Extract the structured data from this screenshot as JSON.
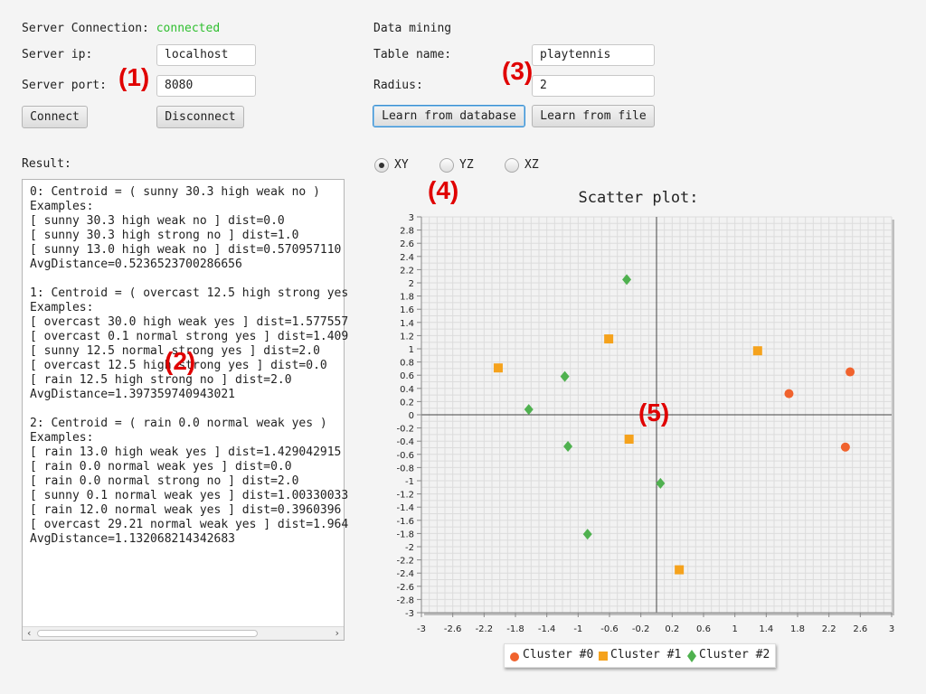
{
  "server": {
    "connection_label": "Server Connection:",
    "connection_status": "connected",
    "ip_label": "Server ip:",
    "ip_value": "localhost",
    "port_label": "Server port:",
    "port_value": "8080",
    "connect_button": "Connect",
    "disconnect_button": "Disconnect"
  },
  "mining": {
    "title": "Data mining",
    "table_label": "Table name:",
    "table_value": "playtennis",
    "radius_label": "Radius:",
    "radius_value": "2",
    "learn_db_button": "Learn from database",
    "learn_file_button": "Learn from file"
  },
  "result": {
    "label": "Result:",
    "text": "0: Centroid = ( sunny 30.3 high weak no )\nExamples:\n[ sunny 30.3 high weak no ] dist=0.0\n[ sunny 30.3 high strong no ] dist=1.0\n[ sunny 13.0 high weak no ] dist=0.570957110\nAvgDistance=0.5236523700286656\n\n1: Centroid = ( overcast 12.5 high strong yes\nExamples:\n[ overcast 30.0 high weak yes ] dist=1.577557\n[ overcast 0.1 normal strong yes ] dist=1.409\n[ sunny 12.5 normal strong yes ] dist=2.0\n[ overcast 12.5 high strong yes ] dist=0.0\n[ rain 12.5 high strong no ] dist=2.0\nAvgDistance=1.397359740943021\n\n2: Centroid = ( rain 0.0 normal weak yes )\nExamples:\n[ rain 13.0 high weak yes ] dist=1.429042915\n[ rain 0.0 normal weak yes ] dist=0.0\n[ rain 0.0 normal strong no ] dist=2.0\n[ sunny 0.1 normal weak yes ] dist=1.00330033\n[ rain 12.0 normal weak yes ] dist=0.3960396\n[ overcast 29.21 normal weak yes ] dist=1.964\nAvgDistance=1.132068214342683"
  },
  "projection": {
    "options": [
      "XY",
      "YZ",
      "XZ"
    ],
    "selected": "XY"
  },
  "annotations": [
    "(1)",
    "(2)",
    "(3)",
    "(4)",
    "(5)"
  ],
  "colors": {
    "cluster0": "#f0622d",
    "cluster1": "#f5a21c",
    "cluster2": "#4fb14f",
    "status_ok": "#2fbf2f",
    "annotation": "#e00000"
  },
  "chart_data": {
    "type": "scatter",
    "title": "Scatter plot:",
    "xlim": [
      -3,
      3
    ],
    "ylim": [
      -3,
      3
    ],
    "grid": true,
    "legend_position": "bottom",
    "x_ticks": [
      "-3",
      "-2.6",
      "-2.2",
      "-1.8",
      "-1.4",
      "-1",
      "-0.6",
      "-0.2",
      "0.2",
      "0.6",
      "1",
      "1.4",
      "1.8",
      "2.2",
      "2.6",
      "3"
    ],
    "y_ticks": [
      "3",
      "2.8",
      "2.6",
      "2.4",
      "2.2",
      "2",
      "1.8",
      "1.6",
      "1.4",
      "1.2",
      "1",
      "0.8",
      "0.6",
      "0.4",
      "0.2",
      "0",
      "-0.2",
      "-0.4",
      "-0.6",
      "-0.8",
      "-1",
      "-1.2",
      "-1.4",
      "-1.6",
      "-1.8",
      "-2",
      "-2.2",
      "-2.4",
      "-2.6",
      "-2.8",
      "-3"
    ],
    "series": [
      {
        "name": "Cluster #0",
        "marker": "circle",
        "color": "#f0622d",
        "points": [
          [
            2.47,
            0.65
          ],
          [
            1.69,
            0.32
          ],
          [
            2.41,
            -0.49
          ]
        ]
      },
      {
        "name": "Cluster #1",
        "marker": "square",
        "color": "#f5a21c",
        "points": [
          [
            -2.02,
            0.71
          ],
          [
            -0.61,
            1.15
          ],
          [
            1.29,
            0.97
          ],
          [
            -0.35,
            -0.37
          ],
          [
            0.29,
            -2.35
          ]
        ]
      },
      {
        "name": "Cluster #2",
        "marker": "diamond",
        "color": "#4fb14f",
        "points": [
          [
            -0.38,
            2.05
          ],
          [
            -1.17,
            0.58
          ],
          [
            -1.63,
            0.08
          ],
          [
            -1.13,
            -0.48
          ],
          [
            0.05,
            -1.04
          ],
          [
            -0.88,
            -1.81
          ]
        ]
      }
    ]
  }
}
